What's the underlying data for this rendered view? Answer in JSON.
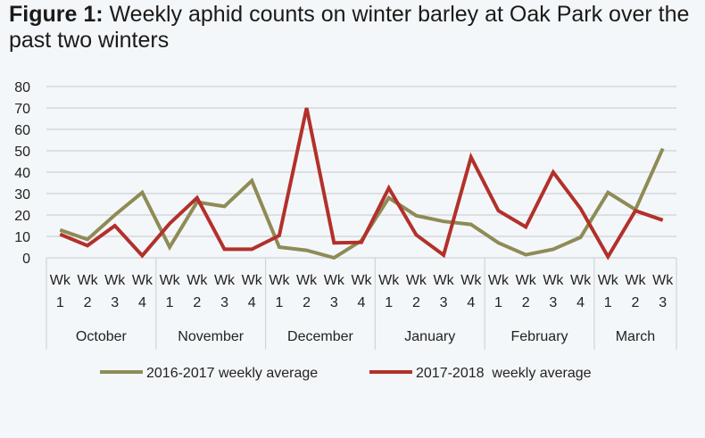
{
  "title": {
    "label": "Figure 1:",
    "text": " Weekly aphid counts on winter barley at Oak Park over the past two winters"
  },
  "colors": {
    "series1": "#8e8b56",
    "series2": "#b3302b",
    "grid": "#cfd3d6"
  },
  "chart_data": {
    "type": "line",
    "title": "Figure 1: Weekly aphid counts on winter barley at Oak Park over the past two winters",
    "xlabel": "",
    "ylabel": "",
    "ylim": [
      0,
      80
    ],
    "yticks": [
      0,
      10,
      20,
      30,
      40,
      50,
      60,
      70,
      80
    ],
    "grid": true,
    "legend_position": "bottom",
    "groups": [
      {
        "name": "October",
        "weeks": [
          [
            "Wk",
            "1"
          ],
          [
            "Wk",
            "2"
          ],
          [
            "Wk",
            "3"
          ],
          [
            "Wk",
            "4"
          ]
        ]
      },
      {
        "name": "November",
        "weeks": [
          [
            "Wk",
            "1"
          ],
          [
            "Wk",
            "2"
          ],
          [
            "Wk",
            "3"
          ],
          [
            "Wk",
            "4"
          ]
        ]
      },
      {
        "name": "December",
        "weeks": [
          [
            "Wk",
            "1"
          ],
          [
            "Wk",
            "2"
          ],
          [
            "Wk",
            "3"
          ],
          [
            "Wk",
            "4"
          ]
        ]
      },
      {
        "name": "January",
        "weeks": [
          [
            "Wk",
            "1"
          ],
          [
            "Wk",
            "2"
          ],
          [
            "Wk",
            "3"
          ],
          [
            "Wk",
            "4"
          ]
        ]
      },
      {
        "name": "February",
        "weeks": [
          [
            "Wk",
            "1"
          ],
          [
            "Wk",
            "2"
          ],
          [
            "Wk",
            "3"
          ],
          [
            "Wk",
            "4"
          ]
        ]
      },
      {
        "name": "March",
        "weeks": [
          [
            "Wk",
            "1"
          ],
          [
            "Wk",
            "2"
          ],
          [
            "Wk",
            "3"
          ]
        ]
      }
    ],
    "series": [
      {
        "name": "2016-2017 weekly average",
        "values": [
          13,
          8.6,
          20,
          30.5,
          5,
          26,
          24,
          36,
          5,
          3.5,
          0,
          8,
          28,
          19.7,
          17,
          15.6,
          7,
          1.4,
          4,
          9.6,
          30.5,
          22.5,
          51
        ]
      },
      {
        "name": "2017-2018  weekly average",
        "values": [
          11,
          5.7,
          15,
          1,
          16,
          28,
          4,
          4,
          10.4,
          70,
          7,
          7.2,
          32.6,
          10.7,
          1.3,
          47,
          22,
          14.4,
          40,
          23,
          0.5,
          22,
          17.6
        ]
      }
    ]
  }
}
